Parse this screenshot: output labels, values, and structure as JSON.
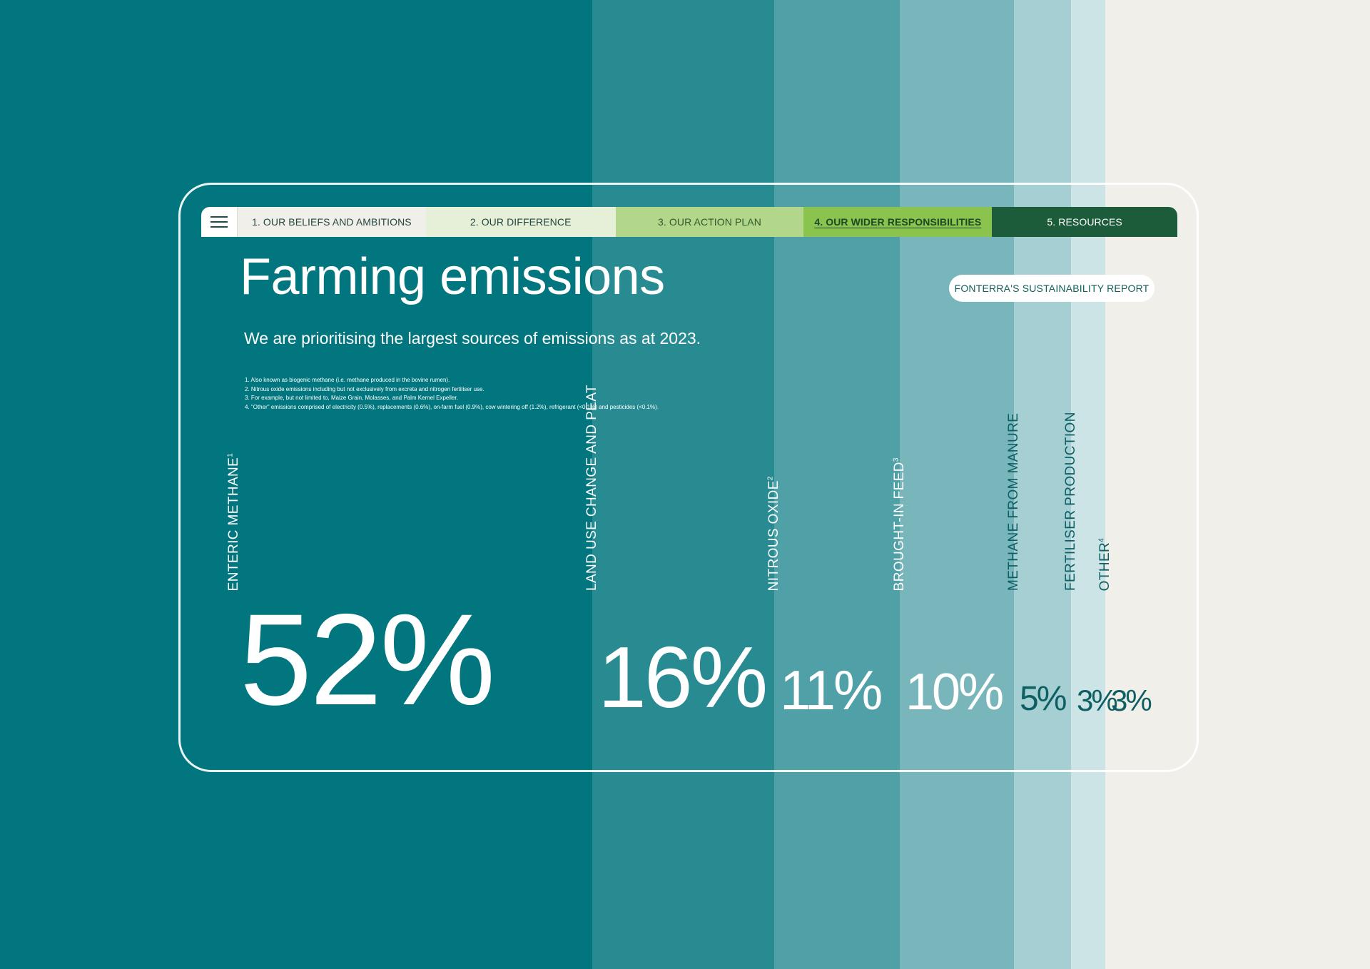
{
  "nav": {
    "menu_icon": "hamburger-menu-icon",
    "tabs": [
      {
        "label": "1. OUR BELIEFS AND AMBITIONS"
      },
      {
        "label": "2. OUR DIFFERENCE"
      },
      {
        "label": "3. OUR ACTION PLAN"
      },
      {
        "label": "4. OUR WIDER RESPONSIBILITIES",
        "active": true
      },
      {
        "label": "5. RESOURCES"
      }
    ]
  },
  "page": {
    "title": "Farming emissions",
    "subtitle": "We are prioritising the largest sources of emissions as at 2023.",
    "badge": "FONTERRA'S SUSTAINABILITY REPORT",
    "footnotes": [
      "1. Also known as biogenic methane (i.e. methane produced in the bovine rumen).",
      "2. Nitrous oxide emissions including but not exclusively from excreta and nitrogen fertiliser use.",
      "3. For example, but not limited to, Maize Grain, Molasses, and Palm Kernel Expeller.",
      "4. \"Other\" emissions comprised of electricity (0.5%), replacements (0.6%), on-farm fuel (0.9%), cow wintering off (1.2%), refrigerant (<0.1%) and pesticides (<0.1%)."
    ]
  },
  "colors": {
    "background": "#02767e",
    "stripes": [
      "#02767e",
      "#288b92",
      "#4fa0a7",
      "#78b6bb",
      "#a5cfd2",
      "#cde4e6",
      "#f1efea"
    ]
  },
  "chart_data": {
    "type": "bar",
    "categories": [
      "ENTERIC METHANE",
      "LAND USE CHANGE AND PEAT",
      "NITROUS OXIDE",
      "BROUGHT-IN FEED",
      "METHANE FROM MANURE",
      "FERTILISER PRODUCTION",
      "OTHER"
    ],
    "footnote_refs": [
      "1",
      "",
      "2",
      "3",
      "",
      "",
      "4"
    ],
    "values": [
      52,
      16,
      11,
      10,
      5,
      3,
      3
    ],
    "labels": [
      "52%",
      "16%",
      "11%",
      "10%",
      "5%",
      "3%",
      "3%"
    ],
    "unit": "%"
  }
}
